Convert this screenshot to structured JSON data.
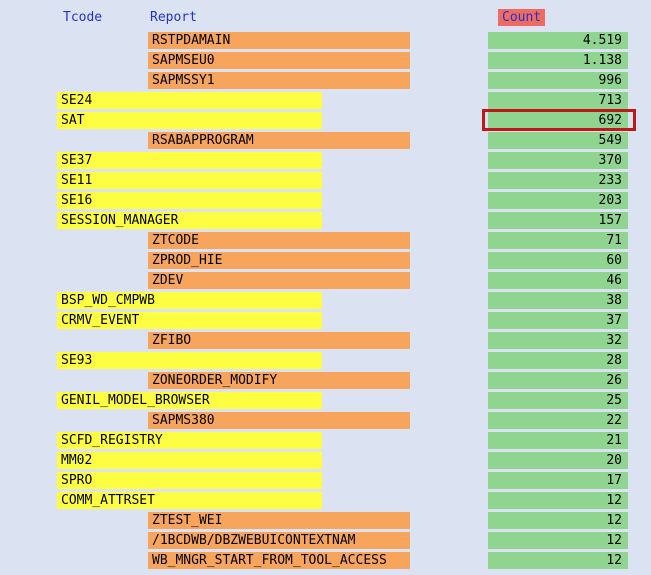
{
  "header": {
    "tcode": "Tcode",
    "report": "Report",
    "count": "Count"
  },
  "colors": {
    "page-bg": "#dbe3f3",
    "header-text": "#2233cc",
    "count-header-bg": "#ee6b61",
    "tcode-bar": "#fdfd42",
    "report-bar": "#f7a55d",
    "count-bar": "#8fd48f",
    "highlight-border": "#c01818"
  },
  "rows": [
    {
      "tcode": "",
      "report": "RSTPDAMAIN",
      "count": "4.519",
      "highlighted": false
    },
    {
      "tcode": "",
      "report": "SAPMSEU0",
      "count": "1.138",
      "highlighted": false
    },
    {
      "tcode": "",
      "report": "SAPMSSY1",
      "count": "996",
      "highlighted": false
    },
    {
      "tcode": "SE24",
      "report": "",
      "count": "713",
      "highlighted": false
    },
    {
      "tcode": "SAT",
      "report": "",
      "count": "692",
      "highlighted": true
    },
    {
      "tcode": "",
      "report": "RSABAPPROGRAM",
      "count": "549",
      "highlighted": false
    },
    {
      "tcode": "SE37",
      "report": "",
      "count": "370",
      "highlighted": false
    },
    {
      "tcode": "SE11",
      "report": "",
      "count": "233",
      "highlighted": false
    },
    {
      "tcode": "SE16",
      "report": "",
      "count": "203",
      "highlighted": false
    },
    {
      "tcode": "SESSION_MANAGER",
      "report": "",
      "count": "157",
      "highlighted": false
    },
    {
      "tcode": "",
      "report": "ZTCODE",
      "count": "71",
      "highlighted": false
    },
    {
      "tcode": "",
      "report": "ZPROD_HIE",
      "count": "60",
      "highlighted": false
    },
    {
      "tcode": "",
      "report": "ZDEV",
      "count": "46",
      "highlighted": false
    },
    {
      "tcode": "BSP_WD_CMPWB",
      "report": "",
      "count": "38",
      "highlighted": false
    },
    {
      "tcode": "CRMV_EVENT",
      "report": "",
      "count": "37",
      "highlighted": false
    },
    {
      "tcode": "",
      "report": "ZFIBO",
      "count": "32",
      "highlighted": false
    },
    {
      "tcode": "SE93",
      "report": "",
      "count": "28",
      "highlighted": false
    },
    {
      "tcode": "",
      "report": "ZONEORDER_MODIFY",
      "count": "26",
      "highlighted": false
    },
    {
      "tcode": "GENIL_MODEL_BROWSER",
      "report": "",
      "count": "25",
      "highlighted": false
    },
    {
      "tcode": "",
      "report": "SAPMS380",
      "count": "22",
      "highlighted": false
    },
    {
      "tcode": "SCFD_REGISTRY",
      "report": "",
      "count": "21",
      "highlighted": false
    },
    {
      "tcode": "MM02",
      "report": "",
      "count": "20",
      "highlighted": false
    },
    {
      "tcode": "SPRO",
      "report": "",
      "count": "17",
      "highlighted": false
    },
    {
      "tcode": "COMM_ATTRSET",
      "report": "",
      "count": "12",
      "highlighted": false
    },
    {
      "tcode": "",
      "report": "ZTEST_WEI",
      "count": "12",
      "highlighted": false
    },
    {
      "tcode": "",
      "report": "/1BCDWB/DBZWEBUICONTEXTNAM",
      "count": "12",
      "highlighted": false
    },
    {
      "tcode": "",
      "report": "WB_MNGR_START_FROM_TOOL_ACCESS",
      "count": "12",
      "highlighted": false
    }
  ]
}
